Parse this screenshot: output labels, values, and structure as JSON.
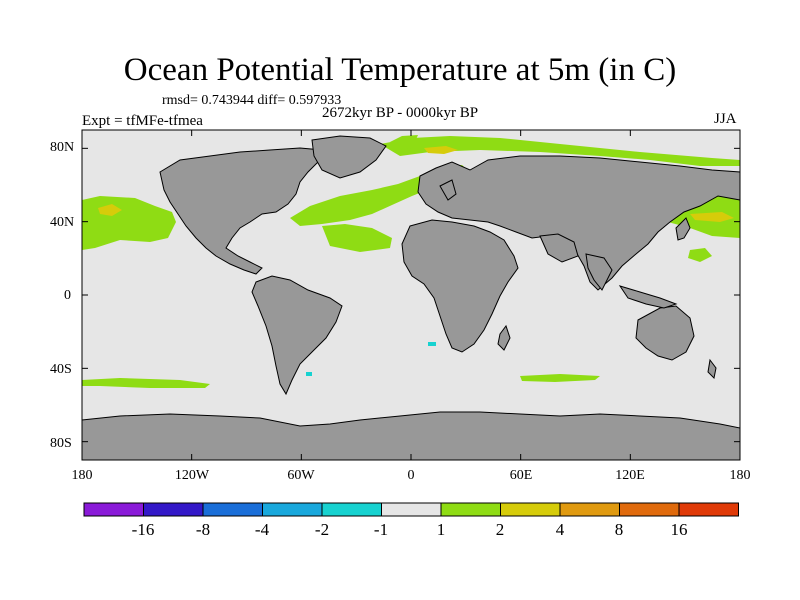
{
  "title": "Ocean Potential Temperature at 5m (in C)",
  "stats_line": "rmsd= 0.743944 diff= 0.597933",
  "period_line": "2672kyr BP - 0000kyr BP",
  "experiment_line": "Expt = tfMFe-tfmea",
  "season": "JJA",
  "y_axis": {
    "labels": [
      "80N",
      "40N",
      "0",
      "40S",
      "80S"
    ],
    "values": [
      80,
      40,
      0,
      -40,
      -80
    ],
    "range": [
      -90,
      90
    ]
  },
  "x_axis": {
    "labels": [
      "180",
      "120W",
      "60W",
      "0",
      "60E",
      "120E",
      "180"
    ],
    "values": [
      -180,
      -120,
      -60,
      0,
      60,
      120,
      180
    ],
    "range": [
      -180,
      180
    ]
  },
  "colorbar": {
    "boundaries": [
      "-16",
      "-8",
      "-4",
      "-2",
      "-1",
      "1",
      "2",
      "4",
      "8",
      "16"
    ],
    "colors": [
      "#8a1ad8",
      "#3318c8",
      "#1a6ed8",
      "#19a8dc",
      "#17d2d0",
      "#e6e6e6",
      "#8fdc14",
      "#d6cc0a",
      "#e09a10",
      "#e06a0c",
      "#e03a08"
    ]
  },
  "map_colors": {
    "ocean_background": "#e6e6e6",
    "land": "#989898",
    "warming_1_2": "#8fdc14",
    "warming_2_4": "#d6cc0a",
    "cooling": "#17d2d0"
  }
}
